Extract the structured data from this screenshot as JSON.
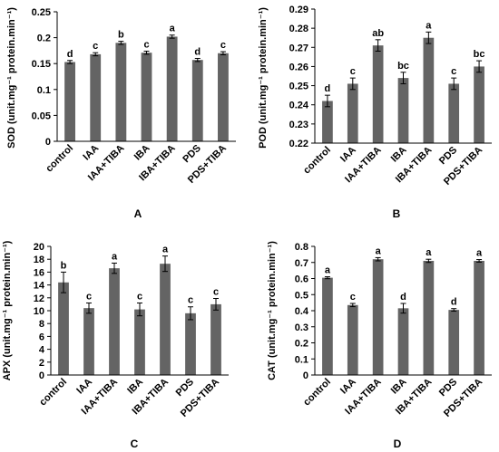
{
  "colors": {
    "bar": "#646464",
    "axis": "#000000",
    "text": "#000000"
  },
  "chart_data": [
    {
      "type": "bar",
      "panel": "A",
      "ylabel": "SOD (unit.mg⁻¹ protein.min⁻¹)",
      "ylim": [
        0,
        0.25
      ],
      "yticks": [
        0,
        0.05,
        0.1,
        0.15,
        0.2,
        0.25
      ],
      "yticklabels": [
        "0",
        "0.05",
        "0.1",
        "0.15",
        "0.2",
        "0.25"
      ],
      "categories": [
        "control",
        "IAA",
        "IAA+TIBA",
        "IBA",
        "IBA+TIBA",
        "PDS",
        "PDS+TIBA"
      ],
      "values": [
        0.153,
        0.168,
        0.19,
        0.171,
        0.202,
        0.157,
        0.17
      ],
      "errors": [
        0.003,
        0.003,
        0.003,
        0.003,
        0.003,
        0.003,
        0.003
      ],
      "significance": [
        "d",
        "c",
        "b",
        "c",
        "a",
        "d",
        "c"
      ]
    },
    {
      "type": "bar",
      "panel": "B",
      "ylabel": "POD (unit.mg⁻¹ protein.min⁻¹)",
      "ylim": [
        0.22,
        0.29
      ],
      "yticks": [
        0.22,
        0.23,
        0.24,
        0.25,
        0.26,
        0.27,
        0.28,
        0.29
      ],
      "yticklabels": [
        "0.22",
        "0.23",
        "0.24",
        "0.25",
        "0.26",
        "0.27",
        "0.28",
        "0.29"
      ],
      "categories": [
        "control",
        "IAA",
        "IAA+TIBA",
        "IBA",
        "IBA+TIBA",
        "PDS",
        "PDS+TIBA"
      ],
      "values": [
        0.242,
        0.251,
        0.271,
        0.254,
        0.275,
        0.251,
        0.26
      ],
      "errors": [
        0.003,
        0.003,
        0.003,
        0.003,
        0.003,
        0.003,
        0.003
      ],
      "significance": [
        "d",
        "c",
        "ab",
        "bc",
        "a",
        "c",
        "bc"
      ]
    },
    {
      "type": "bar",
      "panel": "C",
      "ylabel": "APX (unit.mg⁻¹ protein.min⁻¹)",
      "ylim": [
        0,
        20
      ],
      "yticks": [
        0,
        2,
        4,
        6,
        8,
        10,
        12,
        14,
        16,
        18,
        20
      ],
      "yticklabels": [
        "0",
        "2",
        "4",
        "6",
        "8",
        "10",
        "12",
        "14",
        "16",
        "18",
        "20"
      ],
      "categories": [
        "control",
        "IAA",
        "IAA+TIBA",
        "IBA",
        "IBA+TIBA",
        "PDS",
        "PDS+TIBA"
      ],
      "values": [
        14.4,
        10.4,
        16.6,
        10.2,
        17.3,
        9.6,
        11.0
      ],
      "errors": [
        1.6,
        0.8,
        0.8,
        1.0,
        1.2,
        1.0,
        0.9
      ],
      "significance": [
        "b",
        "c",
        "a",
        "c",
        "a",
        "c",
        "c"
      ]
    },
    {
      "type": "bar",
      "panel": "D",
      "ylabel": "CAT (unit.mg⁻¹ protein.min⁻¹)",
      "ylim": [
        0,
        0.8
      ],
      "yticks": [
        0,
        0.1,
        0.2,
        0.3,
        0.4,
        0.5,
        0.6,
        0.7,
        0.8
      ],
      "yticklabels": [
        "0",
        "0.1",
        "0.2",
        "0.3",
        "0.4",
        "0.5",
        "0.6",
        "0.7",
        "0.8"
      ],
      "categories": [
        "control",
        "IAA",
        "IAA+TIBA",
        "IBA",
        "IBA+TIBA",
        "PDS",
        "PDS+TIBA"
      ],
      "values": [
        0.605,
        0.435,
        0.72,
        0.415,
        0.71,
        0.405,
        0.71
      ],
      "errors": [
        0.006,
        0.01,
        0.01,
        0.03,
        0.01,
        0.008,
        0.008
      ],
      "significance": [
        "a",
        "c",
        "a",
        "d",
        "a",
        "d",
        "a"
      ]
    }
  ]
}
